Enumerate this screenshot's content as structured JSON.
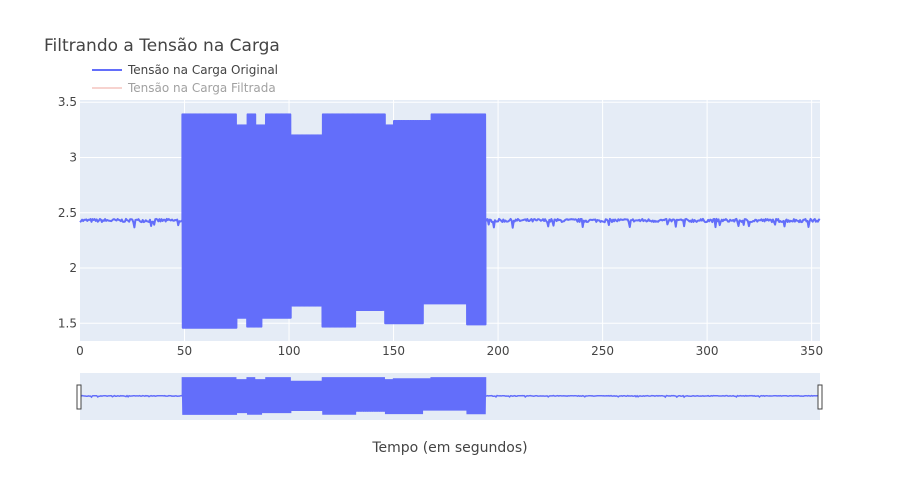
{
  "chart_data": {
    "type": "line",
    "title": "Filtrando a Tensão na Carga",
    "xlabel": "Tempo (em segundos)",
    "ylabel": "",
    "xlim": [
      0,
      354
    ],
    "ylim": [
      1.34,
      3.52
    ],
    "x_ticks": [
      0,
      50,
      100,
      150,
      200,
      250,
      300,
      350
    ],
    "y_ticks": [
      1.5,
      2,
      2.5,
      3,
      3.5
    ],
    "y_tick_labels": [
      "1.5",
      "2",
      "2.5",
      "3",
      "3.5"
    ],
    "grid": true,
    "legend_position": "top-left",
    "rangeslider": true,
    "series": [
      {
        "name": "Tensão na Carga Original",
        "color": "#636efa",
        "visible": true,
        "baseline": 2.43,
        "segments": [
          {
            "x_start": 0,
            "x_end": 49,
            "mode": "flat",
            "value": 2.43
          },
          {
            "x_start": 49,
            "x_end": 194,
            "mode": "oscillating",
            "min": 1.47,
            "max": 3.39
          },
          {
            "x_start": 194,
            "x_end": 354,
            "mode": "flat",
            "value": 2.43
          }
        ],
        "upper_envelope": [
          [
            49,
            3.39
          ],
          [
            75,
            3.39
          ],
          [
            75,
            3.29
          ],
          [
            80,
            3.29
          ],
          [
            80,
            3.39
          ],
          [
            84,
            3.39
          ],
          [
            84,
            3.29
          ],
          [
            89,
            3.29
          ],
          [
            89,
            3.39
          ],
          [
            101,
            3.39
          ],
          [
            101,
            3.2
          ],
          [
            116,
            3.2
          ],
          [
            116,
            3.39
          ],
          [
            146,
            3.39
          ],
          [
            146,
            3.29
          ],
          [
            150,
            3.29
          ],
          [
            150,
            3.33
          ],
          [
            168,
            3.33
          ],
          [
            168,
            3.39
          ],
          [
            194,
            3.39
          ]
        ],
        "lower_envelope": [
          [
            49,
            1.46
          ],
          [
            75,
            1.46
          ],
          [
            75,
            1.55
          ],
          [
            80,
            1.55
          ],
          [
            80,
            1.47
          ],
          [
            87,
            1.47
          ],
          [
            87,
            1.55
          ],
          [
            101,
            1.55
          ],
          [
            101,
            1.66
          ],
          [
            116,
            1.66
          ],
          [
            116,
            1.47
          ],
          [
            132,
            1.47
          ],
          [
            132,
            1.62
          ],
          [
            146,
            1.62
          ],
          [
            146,
            1.5
          ],
          [
            164,
            1.5
          ],
          [
            164,
            1.68
          ],
          [
            185,
            1.68
          ],
          [
            185,
            1.49
          ],
          [
            194,
            1.49
          ]
        ]
      },
      {
        "name": "Tensão na Carga Filtrada",
        "color": "#f0a8a0",
        "visible": false
      }
    ]
  }
}
